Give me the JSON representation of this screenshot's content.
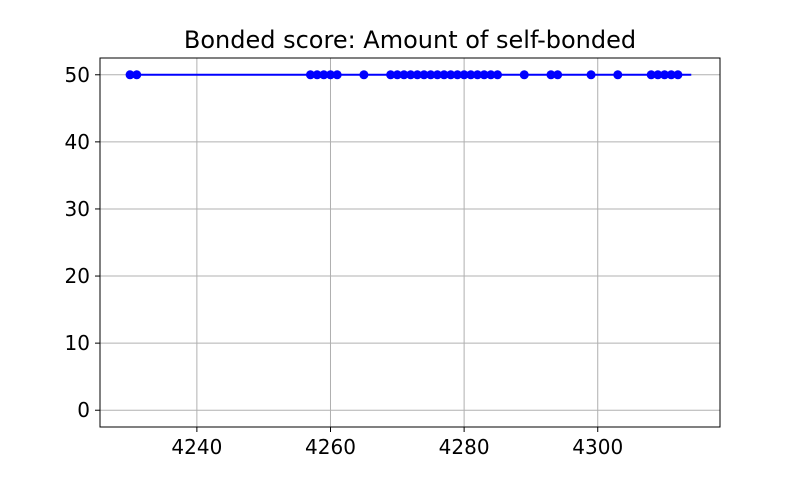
{
  "chart_data": {
    "type": "line",
    "title": "Bonded score: Amount of self-bonded",
    "xlabel": "",
    "ylabel": "",
    "xlim": [
      4225.5,
      4318.3
    ],
    "ylim": [
      -2.5,
      52.5
    ],
    "xticks": [
      4240,
      4260,
      4280,
      4300
    ],
    "yticks": [
      0,
      10,
      20,
      30,
      40,
      50
    ],
    "grid": true,
    "legend": null,
    "series": [
      {
        "color": "#0000ff",
        "marker": "circle",
        "line": {
          "x": [
            4230,
            4314
          ],
          "y": [
            50,
            50
          ]
        },
        "points": {
          "x": [
            4230,
            4231,
            4257,
            4258,
            4259,
            4260,
            4261,
            4265,
            4269,
            4270,
            4271,
            4272,
            4273,
            4274,
            4275,
            4276,
            4277,
            4278,
            4279,
            4280,
            4281,
            4282,
            4283,
            4284,
            4285,
            4289,
            4293,
            4294,
            4299,
            4303,
            4308,
            4309,
            4310,
            4311,
            4312
          ],
          "y": 50
        }
      }
    ]
  }
}
